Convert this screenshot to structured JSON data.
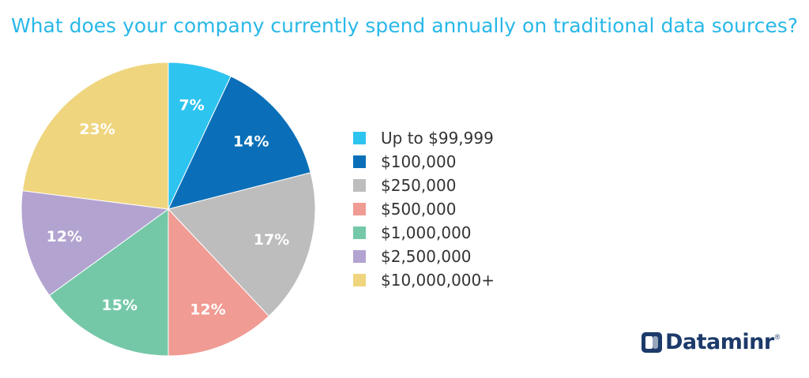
{
  "chart_data": {
    "type": "pie",
    "title": "What does your company currently spend annually on traditional data sources?",
    "slices": [
      {
        "name": "Up to $99,999",
        "value": 7,
        "label": "7%",
        "color": "#2ec4f0"
      },
      {
        "name": "$100,000",
        "value": 14,
        "label": "14%",
        "color": "#0a6fb8"
      },
      {
        "name": "$250,000",
        "value": 17,
        "label": "17%",
        "color": "#bdbdbd"
      },
      {
        "name": "$500,000",
        "value": 12,
        "label": "12%",
        "color": "#f09b93"
      },
      {
        "name": "$1,000,000",
        "value": 15,
        "label": "15%",
        "color": "#74c8a8"
      },
      {
        "name": "$2,500,000",
        "value": 12,
        "label": "12%",
        "color": "#b3a3d0"
      },
      {
        "name": "$10,000,000+",
        "value": 23,
        "label": "23%",
        "color": "#efd57e"
      }
    ],
    "legend_position": "right"
  },
  "logo": {
    "text": "Dataminr",
    "registered": "®"
  }
}
